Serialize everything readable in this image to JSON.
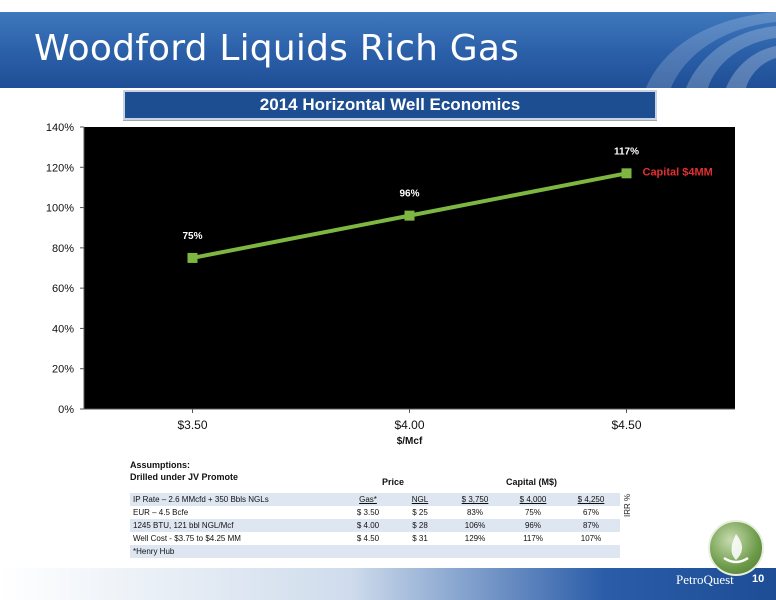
{
  "slide": {
    "title": "Woodford Liquids Rich Gas",
    "subtitle": "2014 Horizontal Well Economics",
    "brand": "PetroQuest",
    "page_number": "10"
  },
  "chart_data": {
    "type": "line",
    "categories": [
      "$3.50",
      "$4.00",
      "$4.50"
    ],
    "series": [
      {
        "name": "Capital $4MM",
        "values": [
          75,
          96,
          117
        ],
        "data_labels": [
          "75%",
          "96%",
          "117%"
        ],
        "color": "#7db640"
      }
    ],
    "xlabel": "$/Mcf",
    "ylabel": "",
    "ylim": [
      0,
      140
    ],
    "yticks": [
      "0%",
      "20%",
      "40%",
      "60%",
      "80%",
      "100%",
      "120%",
      "140%"
    ],
    "ytick_values": [
      0,
      20,
      40,
      60,
      80,
      100,
      120,
      140
    ],
    "plot_background": "#000000",
    "series_label_color": "#e03030",
    "grid": false
  },
  "assumptions": {
    "heading": "Assumptions:",
    "subheading": "Drilled under JV Promote",
    "price_header": "Price",
    "capital_header": "Capital (M$)",
    "rows": [
      [
        "IP Rate – 2.6 MMcfd + 350 Bbls NGLs",
        "Gas*",
        "NGL",
        "$ 3,750",
        "$ 4,000",
        "$ 4,250"
      ],
      [
        "EUR – 4.5 Bcfe",
        "$ 3.50",
        "$ 25",
        "83%",
        "75%",
        "67%"
      ],
      [
        "1245 BTU, 121 bbl NGL/Mcf",
        "$ 4.00",
        "$ 28",
        "106%",
        "96%",
        "87%"
      ],
      [
        "Well Cost - $3.75 to $4.25 MM",
        "$ 4.50",
        "$ 31",
        "129%",
        "117%",
        "107%"
      ],
      [
        "*Henry Hub",
        "",
        "",
        "",
        "",
        ""
      ]
    ],
    "irr_label": "IRR %"
  }
}
